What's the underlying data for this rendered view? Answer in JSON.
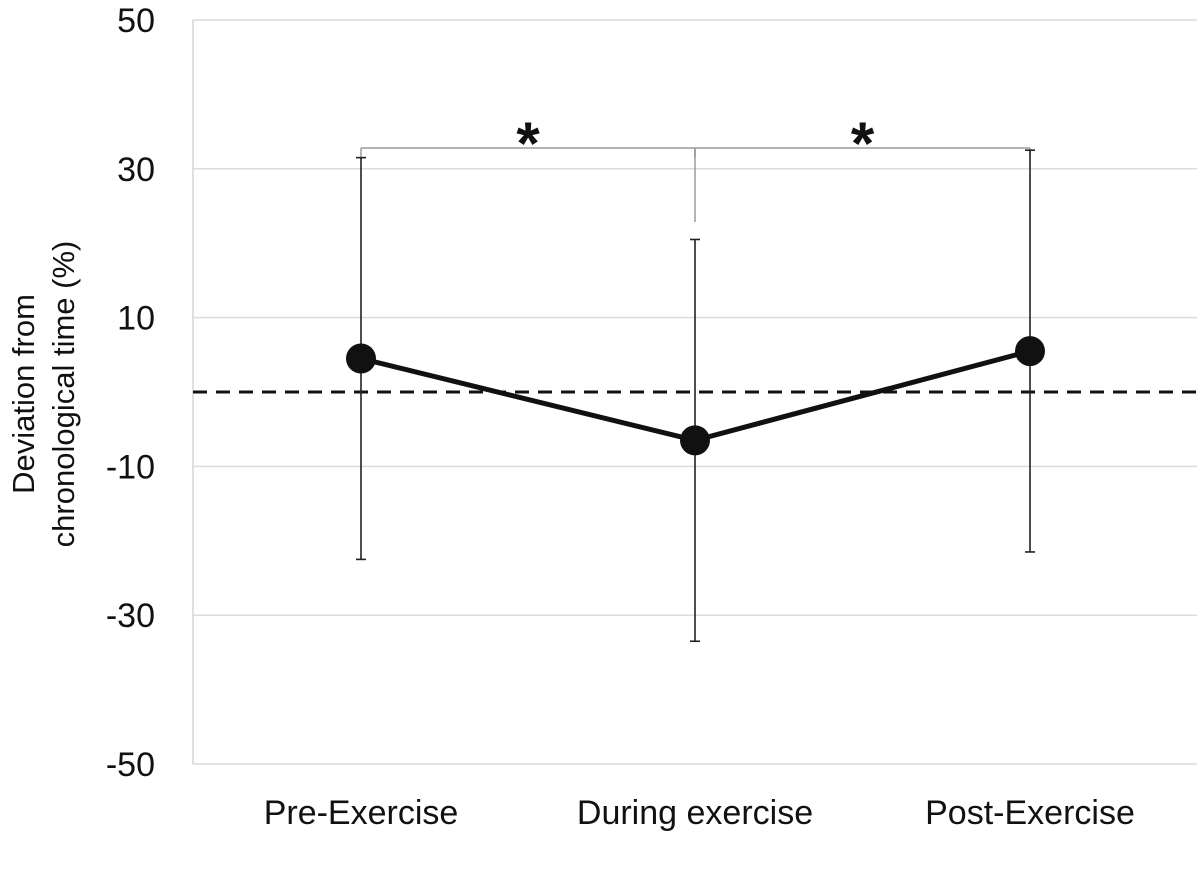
{
  "chart_data": {
    "type": "line",
    "title": "",
    "xlabel": "",
    "ylabel_lines": [
      "Deviation from",
      "chronological time (%)"
    ],
    "categories": [
      "Pre-Exercise",
      "During exercise",
      "Post-Exercise"
    ],
    "series": [
      {
        "values": [
          4.5,
          -6.5,
          5.5
        ],
        "error_upper": [
          31.5,
          20.5,
          32.5
        ],
        "error_lower": [
          -22.5,
          -33.5,
          -21.5
        ],
        "color": "#111111"
      }
    ],
    "ylim": [
      -50,
      50
    ],
    "yticks": [
      "50",
      "30",
      "10",
      "-10",
      "-30",
      "-50"
    ],
    "reference_line": {
      "y": 0,
      "style": "dashed"
    },
    "significance_brackets": [
      {
        "from": "Pre-Exercise",
        "to": "During exercise",
        "label": "*"
      },
      {
        "from": "During exercise",
        "to": "Post-Exercise",
        "label": "*"
      }
    ],
    "grid": true,
    "legend": "none"
  }
}
